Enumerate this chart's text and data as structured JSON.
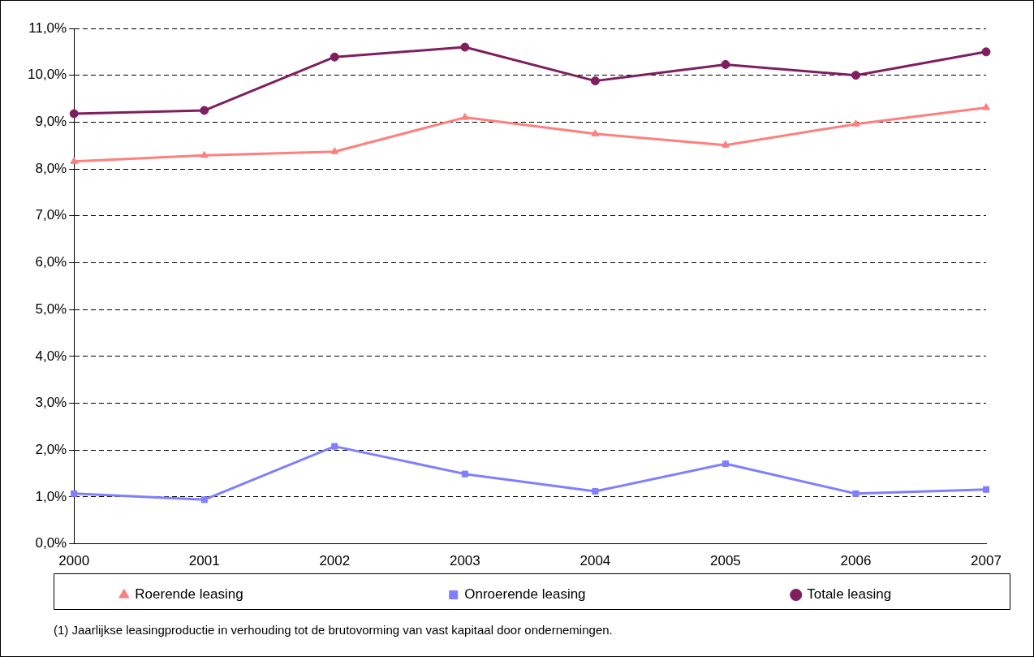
{
  "chart_data": {
    "type": "line",
    "categories": [
      "2000",
      "2001",
      "2002",
      "2003",
      "2004",
      "2005",
      "2006",
      "2007"
    ],
    "series": [
      {
        "name": "Roerende leasing",
        "color": "#ff7f7f",
        "marker": "triangle",
        "values": [
          8.16,
          8.29,
          8.37,
          9.1,
          8.75,
          8.51,
          8.96,
          9.31
        ]
      },
      {
        "name": "Onroerende leasing",
        "color": "#7f7fff",
        "marker": "square",
        "values": [
          1.07,
          0.94,
          2.08,
          1.49,
          1.12,
          1.71,
          1.07,
          1.16
        ]
      },
      {
        "name": "Totale leasing",
        "color": "#7f1f5f",
        "marker": "circle",
        "values": [
          9.18,
          9.25,
          10.39,
          10.6,
          9.88,
          10.23,
          10.0,
          10.5
        ]
      }
    ],
    "ylim": [
      0,
      11
    ],
    "yticks": [
      {
        "value": 0,
        "label": "0,0%"
      },
      {
        "value": 1,
        "label": "1,0%"
      },
      {
        "value": 2,
        "label": "2,0%"
      },
      {
        "value": 3,
        "label": "3,0%"
      },
      {
        "value": 4,
        "label": "4,0%"
      },
      {
        "value": 5,
        "label": "5,0%"
      },
      {
        "value": 6,
        "label": "6,0%"
      },
      {
        "value": 7,
        "label": "7,0%"
      },
      {
        "value": 8,
        "label": "8,0%"
      },
      {
        "value": 9,
        "label": "9,0%"
      },
      {
        "value": 10,
        "label": "10,0%"
      },
      {
        "value": 11,
        "label": "11,0%"
      }
    ],
    "grid": "y",
    "line_style": "solid",
    "legend": "bottom",
    "annotations": [
      "(1) Jaarlijkse leasingproductie in verhouding tot de brutovorming van vast kapitaal door ondernemingen."
    ]
  }
}
